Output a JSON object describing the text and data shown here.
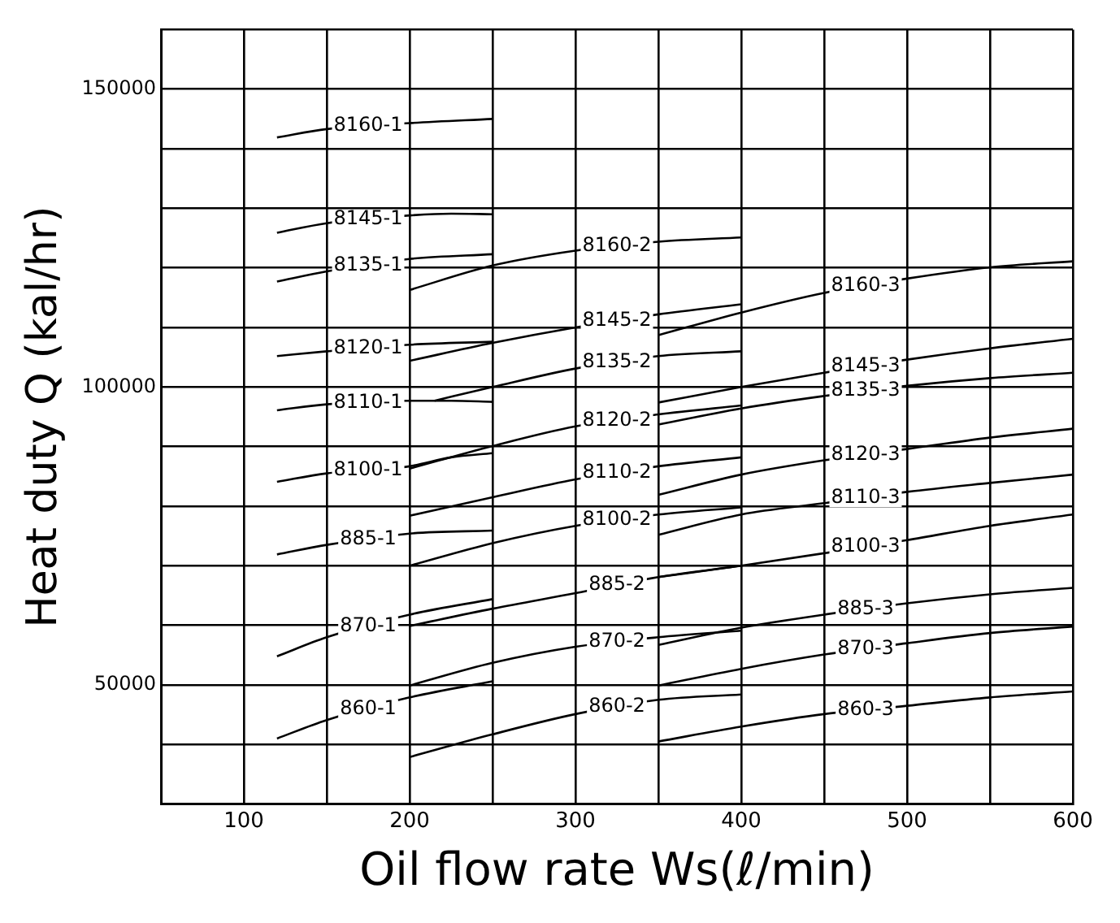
{
  "chart_data": {
    "type": "line",
    "xlabel": "Oil flow rate Ws(ℓ/min)",
    "ylabel": "Heat duty Q (kal/hr)",
    "xlim": [
      50,
      600
    ],
    "xticks": [
      {
        "value": 50,
        "label": null
      },
      100,
      {
        "value": 150,
        "label": null
      },
      200,
      {
        "value": 250,
        "label": null
      },
      300,
      {
        "value": 350,
        "label": null
      },
      400,
      {
        "value": 450,
        "label": null
      },
      500,
      {
        "value": 550,
        "label": null
      },
      600
    ],
    "ylim": [
      30000,
      160000
    ],
    "yticks": [
      {
        "value": 30000,
        "label": null
      },
      {
        "value": 40000,
        "label": null
      },
      50000,
      {
        "value": 60000,
        "label": null
      },
      {
        "value": 70000,
        "label": null
      },
      {
        "value": 80000,
        "label": null
      },
      {
        "value": 90000,
        "label": null
      },
      100000,
      {
        "value": 110000,
        "label": null
      },
      {
        "value": 120000,
        "label": null
      },
      {
        "value": 130000,
        "label": null
      },
      {
        "value": 140000,
        "label": null
      },
      150000,
      {
        "value": 160000,
        "label": null
      }
    ],
    "grid": true,
    "legend": false,
    "marker": "none",
    "line_style": "solid",
    "series": [
      {
        "name": "8160-1",
        "color": "#000000",
        "x": [
          120,
          150,
          200,
          250
        ],
        "values": [
          141900,
          143300,
          144300,
          145000
        ]
      },
      {
        "name": "8145-1",
        "color": "#000000",
        "x": [
          120,
          150,
          200,
          225,
          250
        ],
        "values": [
          125900,
          127500,
          128800,
          129100,
          129000
        ]
      },
      {
        "name": "8135-1",
        "color": "#000000",
        "x": [
          120,
          150,
          200,
          250
        ],
        "values": [
          117700,
          119400,
          121500,
          122300
        ]
      },
      {
        "name": "8120-1",
        "color": "#000000",
        "x": [
          120,
          150,
          200,
          250
        ],
        "values": [
          105200,
          106000,
          107100,
          107600
        ]
      },
      {
        "name": "8110-1",
        "color": "#000000",
        "x": [
          120,
          150,
          200,
          225,
          250
        ],
        "values": [
          96100,
          97100,
          97700,
          97700,
          97500
        ]
      },
      {
        "name": "8100-1",
        "color": "#000000",
        "x": [
          120,
          150,
          200,
          225,
          250
        ],
        "values": [
          84100,
          85500,
          86700,
          88200,
          88900
        ]
      },
      {
        "name": "885-1",
        "color": "#000000",
        "x": [
          120,
          150,
          200,
          250
        ],
        "values": [
          71900,
          73500,
          75400,
          75900
        ]
      },
      {
        "name": "870-1",
        "color": "#000000",
        "x": [
          120,
          150,
          200,
          250
        ],
        "values": [
          54800,
          58000,
          61800,
          64400
        ]
      },
      {
        "name": "860-1",
        "color": "#000000",
        "x": [
          120,
          150,
          200,
          250
        ],
        "values": [
          41000,
          44100,
          47900,
          50600
        ]
      },
      {
        "name": "8160-2",
        "color": "#000000",
        "x": [
          200,
          250,
          300,
          350,
          400
        ],
        "values": [
          116300,
          120400,
          122900,
          124400,
          125100
        ]
      },
      {
        "name": "8145-2",
        "color": "#000000",
        "x": [
          200,
          250,
          300,
          350,
          400
        ],
        "values": [
          104400,
          107400,
          110000,
          112200,
          113900
        ]
      },
      {
        "name": "8135-2",
        "color": "#000000",
        "x": [
          215,
          250,
          300,
          350,
          400
        ],
        "values": [
          97700,
          100000,
          103100,
          105200,
          106000
        ]
      },
      {
        "name": "8120-2",
        "color": "#000000",
        "x": [
          200,
          250,
          300,
          350,
          400
        ],
        "values": [
          86300,
          90100,
          93400,
          95400,
          96900
        ]
      },
      {
        "name": "8110-2",
        "color": "#000000",
        "x": [
          200,
          250,
          300,
          350,
          400
        ],
        "values": [
          78400,
          81500,
          84500,
          86700,
          88200
        ]
      },
      {
        "name": "8100-2",
        "color": "#000000",
        "x": [
          200,
          250,
          300,
          350,
          400
        ],
        "values": [
          70000,
          73800,
          76700,
          78600,
          79800
        ]
      },
      {
        "name": "885-2",
        "color": "#000000",
        "x": [
          200,
          250,
          300,
          350,
          400
        ],
        "values": [
          59900,
          62800,
          65400,
          68100,
          70000
        ]
      },
      {
        "name": "870-2",
        "color": "#000000",
        "x": [
          200,
          250,
          300,
          350,
          400
        ],
        "values": [
          49900,
          53700,
          56400,
          58000,
          59100
        ]
      },
      {
        "name": "860-2",
        "color": "#000000",
        "x": [
          200,
          250,
          300,
          350,
          400
        ],
        "values": [
          37900,
          41700,
          45100,
          47500,
          48400
        ]
      },
      {
        "name": "8160-3",
        "color": "#000000",
        "x": [
          350,
          400,
          450,
          500,
          550,
          600
        ],
        "values": [
          108700,
          112500,
          115800,
          118200,
          120100,
          121100
        ]
      },
      {
        "name": "8145-3",
        "color": "#000000",
        "x": [
          350,
          400,
          450,
          500,
          550,
          600
        ],
        "values": [
          97400,
          100000,
          102400,
          104600,
          106500,
          108100
        ]
      },
      {
        "name": "8135-3",
        "color": "#000000",
        "x": [
          350,
          400,
          450,
          500,
          550,
          600
        ],
        "values": [
          93700,
          96400,
          98500,
          100200,
          101500,
          102400
        ]
      },
      {
        "name": "8120-3",
        "color": "#000000",
        "x": [
          350,
          400,
          450,
          500,
          550,
          600
        ],
        "values": [
          81900,
          85300,
          87700,
          89600,
          91500,
          93000
        ]
      },
      {
        "name": "8110-3",
        "color": "#000000",
        "x": [
          350,
          400,
          450,
          500,
          550,
          600
        ],
        "values": [
          75200,
          78600,
          80500,
          82400,
          83900,
          85300
        ]
      },
      {
        "name": "8100-3",
        "color": "#000000",
        "x": [
          350,
          400,
          450,
          500,
          550,
          600
        ],
        "values": [
          68100,
          70000,
          72100,
          74300,
          76700,
          78600
        ]
      },
      {
        "name": "885-3",
        "color": "#000000",
        "x": [
          350,
          400,
          450,
          500,
          550,
          600
        ],
        "values": [
          56700,
          59600,
          61800,
          63700,
          65200,
          66300
        ]
      },
      {
        "name": "870-3",
        "color": "#000000",
        "x": [
          350,
          400,
          450,
          500,
          550,
          600
        ],
        "values": [
          49900,
          52700,
          55100,
          57000,
          58700,
          59800
        ]
      },
      {
        "name": "860-3",
        "color": "#000000",
        "x": [
          350,
          400,
          450,
          500,
          550,
          600
        ],
        "values": [
          40500,
          43000,
          45100,
          46500,
          47900,
          48900
        ]
      }
    ]
  }
}
